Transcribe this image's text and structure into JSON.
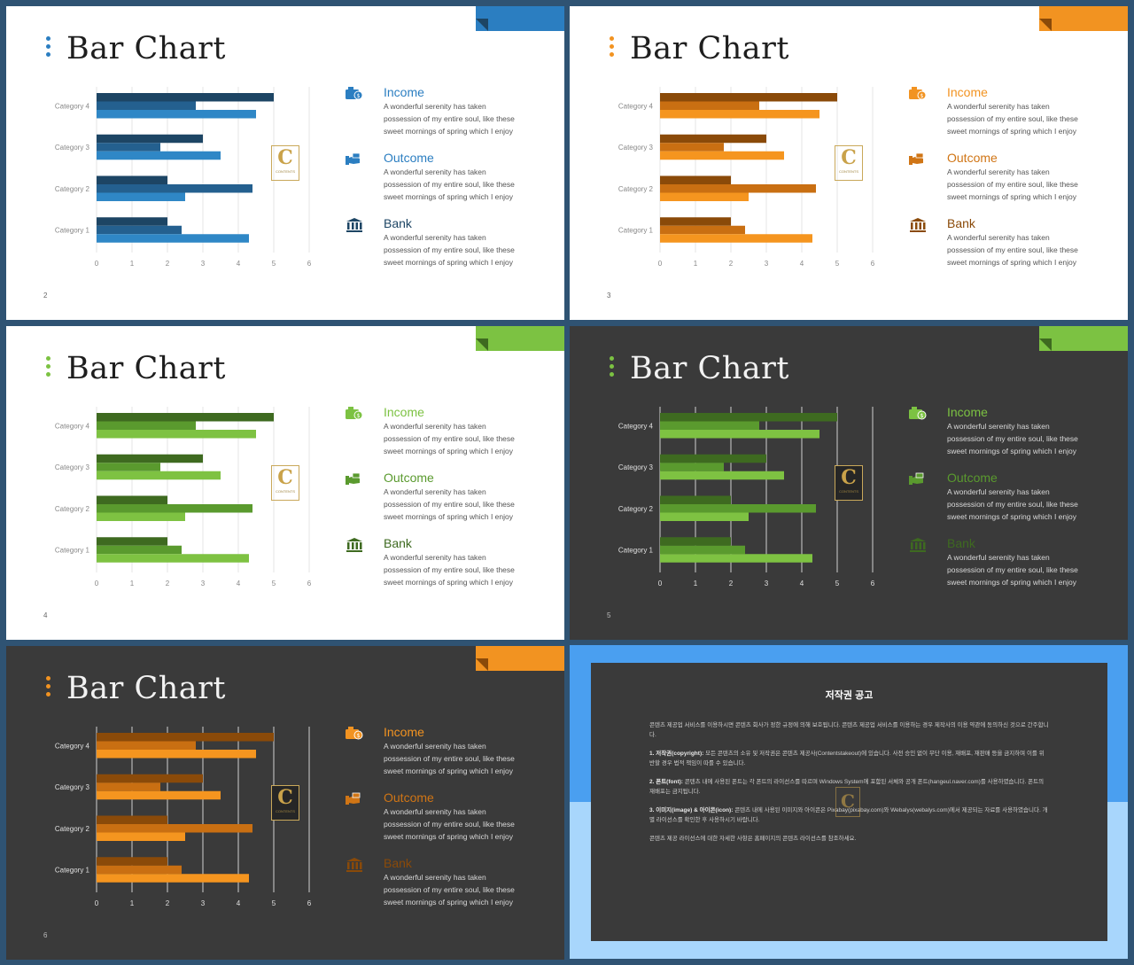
{
  "slide_title": "Bar Chart",
  "legend": [
    {
      "key": "income",
      "title": "Income",
      "desc": "A wonderful serenity has taken possession of my entire soul, like these sweet mornings of spring which I enjoy",
      "icon": "money-card-icon"
    },
    {
      "key": "outcome",
      "title": "Outcome",
      "desc": "A wonderful serenity has taken possession of my entire soul, like these sweet mornings of spring which I enjoy",
      "icon": "hand-money-icon"
    },
    {
      "key": "bank",
      "title": "Bank",
      "desc": "A wonderful serenity has taken possession of my entire soul, like these sweet mornings of spring which I enjoy",
      "icon": "bank-icon"
    }
  ],
  "logo": {
    "letter": "C",
    "text": "CONTENTS"
  },
  "slides": [
    {
      "page": "2",
      "theme": "light",
      "accent": "#2b7ec1",
      "bar_colors": [
        "#2f87c6",
        "#24608f",
        "#1d4564"
      ],
      "legend_colors": [
        "#2b7ec1",
        "#2b7ec1",
        "#1d4564"
      ]
    },
    {
      "page": "3",
      "theme": "light",
      "accent": "#f29321",
      "bar_colors": [
        "#f5951f",
        "#c96f12",
        "#8a4a09"
      ],
      "legend_colors": [
        "#f29321",
        "#d07515",
        "#8a4a09"
      ]
    },
    {
      "page": "4",
      "theme": "light",
      "accent": "#7cc242",
      "bar_colors": [
        "#7ec242",
        "#5a9a2e",
        "#3e6a20"
      ],
      "legend_colors": [
        "#7cc242",
        "#5a9a2e",
        "#3e6a20"
      ]
    },
    {
      "page": "5",
      "theme": "dark",
      "accent": "#7cc242",
      "bar_colors": [
        "#7ec242",
        "#5a9a2e",
        "#3e6a20"
      ],
      "legend_colors": [
        "#7cc242",
        "#5a9a2e",
        "#3e6a20"
      ]
    },
    {
      "page": "6",
      "theme": "dark",
      "accent": "#f29321",
      "bar_colors": [
        "#f5951f",
        "#c96f12",
        "#8a4a09"
      ],
      "legend_colors": [
        "#f29321",
        "#d07515",
        "#8a4a09"
      ]
    }
  ],
  "chart_data": {
    "type": "bar",
    "orientation": "horizontal",
    "categories": [
      "Category 1",
      "Category 2",
      "Category 3",
      "Category 4"
    ],
    "series": [
      {
        "values": [
          4.3,
          2.5,
          3.5,
          4.5
        ]
      },
      {
        "values": [
          2.4,
          4.4,
          1.8,
          2.8
        ]
      },
      {
        "values": [
          2.0,
          2.0,
          3.0,
          5.0
        ]
      }
    ],
    "xlim": [
      0,
      6
    ],
    "xticks": [
      "0",
      "1",
      "2",
      "3",
      "4",
      "5",
      "6"
    ],
    "grid": true
  },
  "notice": {
    "title": "저작권 공고",
    "p0": "콘텐츠 제공업 서비스를 이용하시면 콘텐츠 회사가 정한 규정에 의해 보호됩니다. 콘텐츠 제공업 서비스를 이용하는 경우 제작사의 이용 약관에 동의하신 것으로 간주합니다.",
    "p1_head": "1. 저작권(copyright):",
    "p1": " 모든 콘텐츠의 소유 및 저작권은 콘텐츠 제공사(Contentstakeout)에 있습니다. 사전 승인 없이 무단 이용, 재배포, 재판매 등을 금지하며 이를 위반할 경우 법적 책임이 따를 수 있습니다.",
    "p2_head": "2. 폰트(font):",
    "p2": " 콘텐츠 내에 사용된 폰트는 각 폰트의 라이선스를 따르며 Windows System에 포함된 서체와 공개 폰트(hangeul.naver.com)를 사용하였습니다. 폰트의 재배포는 금지됩니다.",
    "p3_head": "3. 이미지(image) & 아이콘(icon):",
    "p3": " 콘텐츠 내에 사용된 이미지와 아이콘은 Pixabay(pixabay.com)와 Webalys(webalys.com)에서 제공되는 자료를 사용하였습니다. 개별 라이선스를 확인한 후 사용하시기 바랍니다.",
    "p4": "콘텐츠 제공 라이선스에 대한 자세한 사항은 홈페이지의 콘텐츠 라이선스를 참조하세요."
  }
}
